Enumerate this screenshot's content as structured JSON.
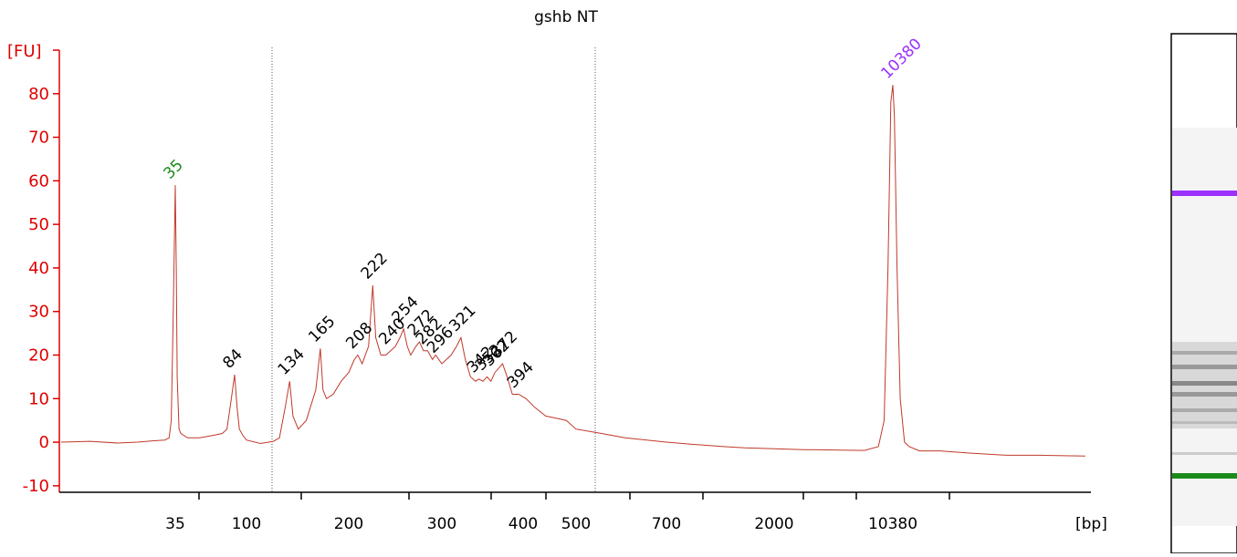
{
  "chart_data": {
    "type": "line",
    "title": "gshb NT",
    "ylabel": "[FU]",
    "xlabel": "[bp]",
    "ylim": [
      -11.5,
      90
    ],
    "yticks": [
      -10,
      0,
      10,
      20,
      30,
      40,
      50,
      60,
      70,
      80
    ],
    "xticks": [
      35,
      100,
      200,
      300,
      400,
      500,
      700,
      2000,
      10380
    ],
    "axis_color": "#e00000",
    "series": [
      {
        "color": "#c0392b",
        "x": [
          6.5,
          10,
          15,
          20,
          25,
          30,
          32,
          33,
          34,
          35,
          35.5,
          36,
          37,
          38,
          42,
          50,
          60,
          70,
          75,
          80,
          84,
          87,
          90,
          95,
          100,
          110,
          120,
          125,
          130,
          134,
          137,
          142,
          150,
          160,
          165,
          168,
          172,
          180,
          190,
          200,
          205,
          208,
          212,
          218,
          222,
          225,
          230,
          235,
          240,
          245,
          250,
          254,
          258,
          262,
          268,
          272,
          277,
          282,
          288,
          292,
          296,
          300,
          310,
          316,
          321,
          326,
          332,
          338,
          342,
          347,
          352,
          357,
          362,
          367,
          372,
          378,
          385,
          394,
          405,
          420,
          440,
          460,
          480,
          500,
          550,
          600,
          700,
          900,
          1200,
          1500,
          2000,
          3000,
          5000,
          7000,
          8500,
          9200,
          9700,
          10100,
          10380,
          10600,
          11000,
          11500,
          12200,
          13000,
          15000,
          20000,
          30000,
          50000,
          80000,
          150000
        ],
        "values": [
          0,
          0.2,
          -0.2,
          0,
          0.3,
          0.5,
          1,
          5,
          30,
          59,
          40,
          15,
          3,
          2,
          1,
          1,
          1.5,
          2,
          3,
          10,
          15.5,
          8,
          3,
          1.5,
          0.5,
          -0.3,
          0.2,
          1,
          8,
          14,
          6,
          3,
          5,
          12,
          21.5,
          12,
          10,
          11,
          14,
          16,
          19,
          20,
          18,
          22,
          36,
          24,
          20,
          20,
          21,
          22,
          24,
          26,
          22,
          20,
          22,
          23,
          21,
          21,
          19,
          20,
          19,
          18,
          20,
          22,
          24,
          19,
          15,
          14,
          14.5,
          14,
          15,
          14,
          16,
          17,
          18,
          15,
          11,
          11,
          10,
          8,
          6,
          5.5,
          5,
          3,
          2,
          1,
          0,
          -0.5,
          -1,
          -1.3,
          -1.5,
          -1.7,
          -1.8,
          -1.9,
          -1,
          5,
          40,
          78,
          82,
          75,
          40,
          10,
          0,
          -1,
          -2,
          -2,
          -2.5,
          -3,
          -3,
          -3.2
        ]
      }
    ],
    "peaks": [
      {
        "bp": 35,
        "fu": 59,
        "color": "#1a8a1a"
      },
      {
        "bp": 84,
        "fu": 15.5,
        "color": "#000000"
      },
      {
        "bp": 134,
        "fu": 14,
        "color": "#000000"
      },
      {
        "bp": 165,
        "fu": 21.5,
        "color": "#000000"
      },
      {
        "bp": 208,
        "fu": 20,
        "color": "#000000"
      },
      {
        "bp": 222,
        "fu": 36,
        "color": "#000000"
      },
      {
        "bp": 240,
        "fu": 21,
        "color": "#000000"
      },
      {
        "bp": 254,
        "fu": 26,
        "color": "#000000"
      },
      {
        "bp": 272,
        "fu": 23,
        "color": "#000000"
      },
      {
        "bp": 282,
        "fu": 21,
        "color": "#000000"
      },
      {
        "bp": 296,
        "fu": 19,
        "color": "#000000"
      },
      {
        "bp": 321,
        "fu": 24,
        "color": "#000000"
      },
      {
        "bp": 342,
        "fu": 14.5,
        "color": "#000000"
      },
      {
        "bp": 352,
        "fu": 15,
        "color": "#000000"
      },
      {
        "bp": 362,
        "fu": 16,
        "color": "#000000"
      },
      {
        "bp": 372,
        "fu": 18,
        "color": "#000000"
      },
      {
        "bp": 394,
        "fu": 11,
        "color": "#000000"
      },
      {
        "bp": 10380,
        "fu": 82,
        "color": "#9b30ff"
      }
    ]
  }
}
